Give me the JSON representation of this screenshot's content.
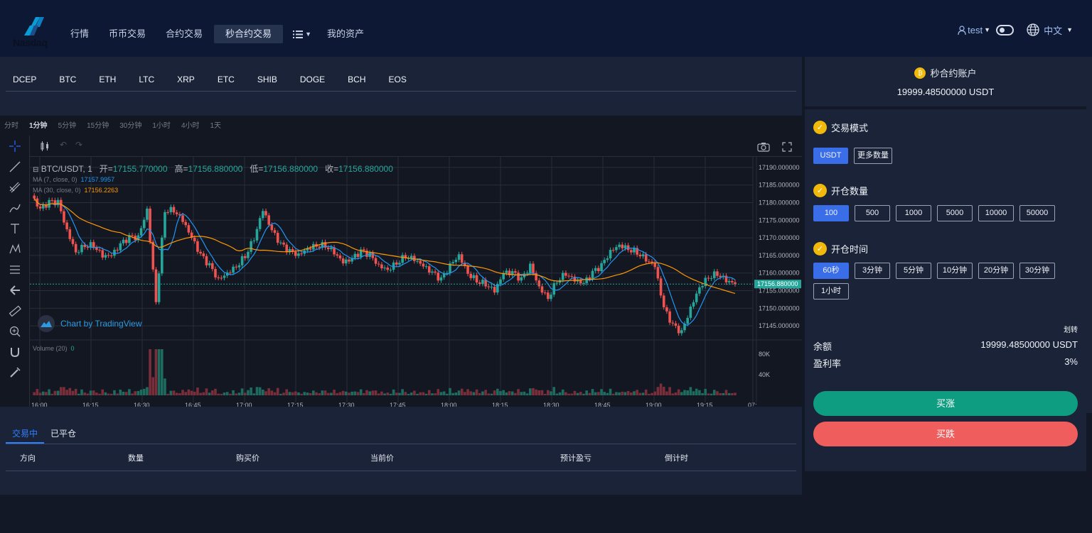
{
  "header": {
    "logo_text": "Nasdaq",
    "nav": [
      "行情",
      "币币交易",
      "合约交易",
      "秒合约交易",
      "我的资产"
    ],
    "active_nav": "秒合约交易",
    "user": "test",
    "language": "中文"
  },
  "coins": [
    "DCEP",
    "BTC",
    "ETH",
    "LTC",
    "XRP",
    "ETC",
    "SHIB",
    "DOGE",
    "BCH",
    "EOS"
  ],
  "chart": {
    "intervals": [
      "分时",
      "1分钟",
      "5分钟",
      "15分钟",
      "30分钟",
      "1小时",
      "4小时",
      "1天"
    ],
    "active_interval": "1分钟",
    "symbol": "BTC/USDT, 1",
    "open_label": "开=",
    "open": "17155.770000",
    "high_label": "高=",
    "high": "17156.880000",
    "low_label": "低=",
    "low": "17156.880000",
    "close_label": "收=",
    "close": "17156.880000",
    "ma7_label": "MA (7, close, 0)",
    "ma7_value": "17157.9957",
    "ma30_label": "MA (30, close, 0)",
    "ma30_value": "17156.2263",
    "volume_label": "Volume (20)",
    "volume_value": "0",
    "watermark": "Chart by TradingView",
    "current_price_label": "17156.880000"
  },
  "chart_data": {
    "type": "candlestick",
    "title": "BTC/USDT, 1",
    "y_ticks": [
      "17190.000000",
      "17185.000000",
      "17180.000000",
      "17175.000000",
      "17170.000000",
      "17165.000000",
      "17160.000000",
      "17155.000000",
      "17150.000000",
      "17145.000000"
    ],
    "y_range": [
      17141,
      17193
    ],
    "x_ticks": [
      "16:00",
      "16:15",
      "16:30",
      "16:45",
      "17:00",
      "17:15",
      "17:30",
      "17:45",
      "18:00",
      "18:15",
      "18:30",
      "18:45",
      "19:00",
      "19:15",
      "07:"
    ],
    "volume_ticks": [
      "80K",
      "40K"
    ],
    "ma7_color": "#2196f3",
    "ma30_color": "#ff9800",
    "up_color": "#26a69a",
    "down_color": "#ef5350",
    "close_path": [
      [
        16.0,
        17182
      ],
      [
        16.05,
        17178
      ],
      [
        16.1,
        17180
      ],
      [
        16.15,
        17180
      ],
      [
        16.2,
        17172
      ],
      [
        16.25,
        17166
      ],
      [
        16.3,
        17168
      ],
      [
        16.35,
        17168
      ],
      [
        16.4,
        17165
      ],
      [
        16.45,
        17165
      ],
      [
        16.5,
        17168
      ],
      [
        16.55,
        17170
      ],
      [
        16.6,
        17170
      ],
      [
        16.65,
        17178
      ],
      [
        16.7,
        17152
      ],
      [
        16.75,
        17178
      ],
      [
        16.8,
        17178
      ],
      [
        16.85,
        17175
      ],
      [
        16.9,
        17170
      ],
      [
        16.95,
        17165
      ],
      [
        17.0,
        17162
      ],
      [
        17.05,
        17158
      ],
      [
        17.1,
        17160
      ],
      [
        17.15,
        17162
      ],
      [
        17.2,
        17165
      ],
      [
        17.25,
        17170
      ],
      [
        17.3,
        17178
      ],
      [
        17.35,
        17172
      ],
      [
        17.4,
        17168
      ],
      [
        17.45,
        17166
      ],
      [
        17.5,
        17165
      ],
      [
        17.55,
        17167
      ],
      [
        17.6,
        17168
      ],
      [
        17.65,
        17168
      ],
      [
        17.7,
        17166
      ],
      [
        17.75,
        17163
      ],
      [
        17.8,
        17164
      ],
      [
        17.85,
        17166
      ],
      [
        17.9,
        17165
      ],
      [
        17.95,
        17162
      ],
      [
        18.0,
        17161
      ],
      [
        18.05,
        17163
      ],
      [
        18.1,
        17165
      ],
      [
        18.15,
        17164
      ],
      [
        18.2,
        17162
      ],
      [
        18.25,
        17160
      ],
      [
        18.3,
        17158
      ],
      [
        18.35,
        17162
      ],
      [
        18.4,
        17165
      ],
      [
        18.45,
        17160
      ],
      [
        18.5,
        17158
      ],
      [
        18.55,
        17157
      ],
      [
        18.6,
        17155
      ],
      [
        18.65,
        17160
      ],
      [
        18.7,
        17160
      ],
      [
        18.75,
        17158
      ],
      [
        18.8,
        17162
      ],
      [
        18.85,
        17156
      ],
      [
        18.9,
        17153
      ],
      [
        18.95,
        17158
      ],
      [
        19.0,
        17160
      ],
      [
        19.05,
        17158
      ],
      [
        19.1,
        17157
      ],
      [
        19.15,
        17160
      ],
      [
        19.2,
        17162
      ],
      [
        19.25,
        17166
      ],
      [
        19.3,
        17168
      ],
      [
        19.35,
        17167
      ],
      [
        19.4,
        17166
      ],
      [
        19.45,
        17164
      ],
      [
        19.5,
        17162
      ],
      [
        19.55,
        17150
      ],
      [
        19.6,
        17145
      ],
      [
        19.65,
        17143
      ],
      [
        19.7,
        17150
      ],
      [
        19.75,
        17156
      ],
      [
        19.8,
        17159
      ],
      [
        19.85,
        17160
      ],
      [
        19.9,
        17158
      ],
      [
        19.95,
        17157
      ]
    ]
  },
  "orders": {
    "tabs": [
      "交易中",
      "已平仓"
    ],
    "columns": [
      "方向",
      "数量",
      "购买价",
      "当前价",
      "预计盈亏",
      "倒计时"
    ]
  },
  "account": {
    "title": "秒合约账户",
    "balance": "19999.48500000 USDT"
  },
  "trade": {
    "mode_title": "交易模式",
    "modes": [
      "USDT",
      "更多数量"
    ],
    "qty_title": "开仓数量",
    "quantities": [
      "100",
      "500",
      "1000",
      "5000",
      "10000",
      "50000"
    ],
    "time_title": "开仓时间",
    "times": [
      "60秒",
      "3分钟",
      "5分钟",
      "10分钟",
      "20分钟",
      "30分钟",
      "1小时"
    ],
    "transfer": "划转",
    "balance_label": "余额",
    "balance_value": "19999.48500000 USDT",
    "profit_label": "盈利率",
    "profit_value": "3%",
    "buy_up": "买涨",
    "buy_down": "买跌"
  }
}
